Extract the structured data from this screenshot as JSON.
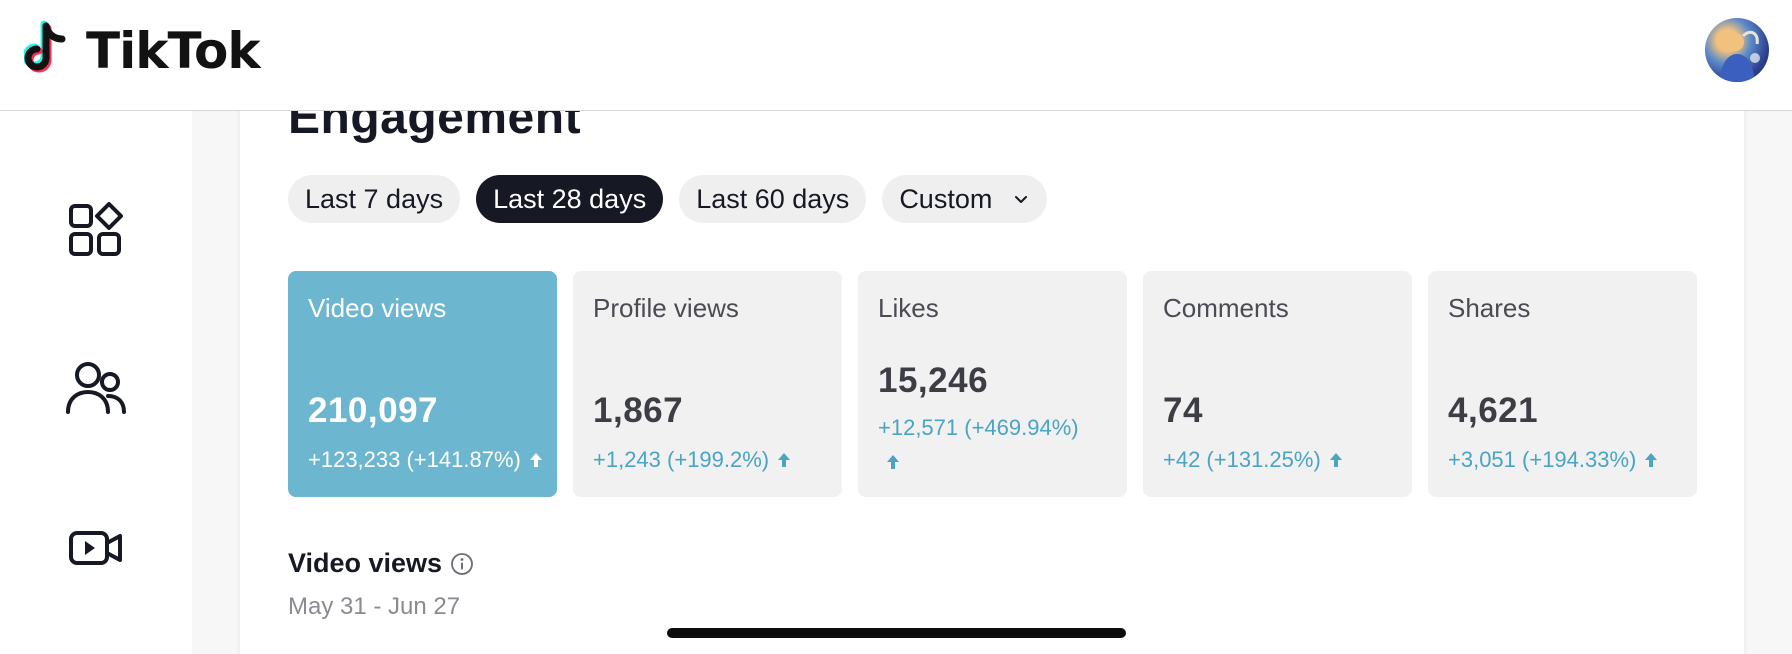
{
  "header": {
    "brand": "TikTok",
    "logo_icon": "tiktok-note-logo",
    "avatar_icon": "user-avatar"
  },
  "sidebar": {
    "items": [
      {
        "icon": "overview-grid-icon"
      },
      {
        "icon": "followers-icon"
      },
      {
        "icon": "video-camera-icon"
      }
    ]
  },
  "section": {
    "title": "Engagement"
  },
  "filters": {
    "options": [
      "Last 7 days",
      "Last 28 days",
      "Last 60 days",
      "Custom"
    ],
    "selected": "Last 28 days"
  },
  "metrics": [
    {
      "label": "Video views",
      "value": "210,097",
      "delta": "+123,233 (+141.87%)",
      "active": true
    },
    {
      "label": "Profile views",
      "value": "1,867",
      "delta": "+1,243 (+199.2%)",
      "active": false
    },
    {
      "label": "Likes",
      "value": "15,246",
      "delta": "+12,571 (+469.94%)",
      "active": false
    },
    {
      "label": "Comments",
      "value": "74",
      "delta": "+42 (+131.25%)",
      "active": false
    },
    {
      "label": "Shares",
      "value": "4,621",
      "delta": "+3,051 (+194.33%)",
      "active": false
    }
  ],
  "chart": {
    "title": "Video views",
    "date_range": "May 31 - Jun 27"
  },
  "colors": {
    "accent": "#6db6cf",
    "delta": "#4aa4c2",
    "active_pill": "#161823"
  }
}
